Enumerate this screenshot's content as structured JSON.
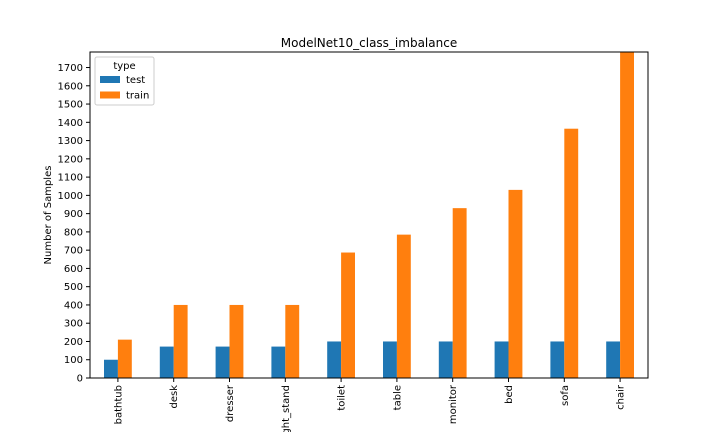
{
  "chart_data": {
    "type": "bar",
    "title": "ModelNet10_class_imbalance",
    "xlabel": "",
    "ylabel": "Number of Samples",
    "categories": [
      "bathtub",
      "desk",
      "dresser",
      "night_stand",
      "toilet",
      "table",
      "monitor",
      "bed",
      "sofa",
      "chair"
    ],
    "series": [
      {
        "name": "test",
        "color": "#1f77b4",
        "values": [
          100,
          172,
          172,
          172,
          200,
          200,
          200,
          200,
          200,
          200
        ]
      },
      {
        "name": "train",
        "color": "#ff7f0e",
        "values": [
          210,
          400,
          400,
          400,
          687,
          785,
          930,
          1030,
          1365,
          1785
        ]
      }
    ],
    "ylim": [
      0,
      1785
    ],
    "yticks": [
      0,
      100,
      200,
      300,
      400,
      500,
      600,
      700,
      800,
      900,
      1000,
      1100,
      1200,
      1300,
      1400,
      1500,
      1600,
      1700
    ],
    "legend": {
      "title": "type",
      "placement": "top-left"
    },
    "grid": false
  }
}
